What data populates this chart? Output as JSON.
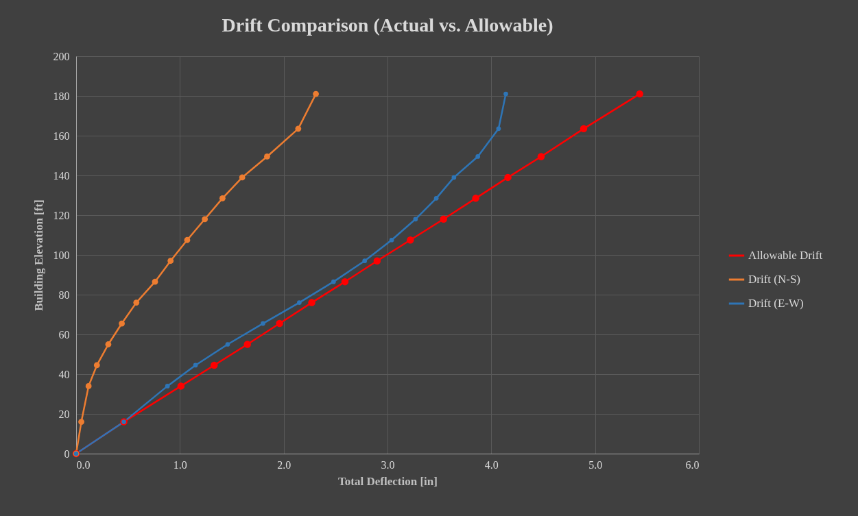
{
  "chart_data": {
    "type": "line",
    "title": "Drift Comparison (Actual vs. Allowable)",
    "xlabel": "Total Deflection [in]",
    "ylabel": "Building Elevation [ft]",
    "xlim": [
      0,
      6
    ],
    "ylim": [
      0,
      200
    ],
    "xticks": [
      {
        "value": 0,
        "label": "0.0"
      },
      {
        "value": 1,
        "label": "1.0"
      },
      {
        "value": 2,
        "label": "2.0"
      },
      {
        "value": 3,
        "label": "3.0"
      },
      {
        "value": 4,
        "label": "4.0"
      },
      {
        "value": 5,
        "label": "5.0"
      },
      {
        "value": 6,
        "label": "6.0"
      }
    ],
    "yticks": [
      0,
      20,
      40,
      60,
      80,
      100,
      120,
      140,
      160,
      180,
      200
    ],
    "grid": true,
    "legend": "right",
    "marker": "circle",
    "line_style": "solid",
    "series": [
      {
        "name": "Allowable Drift",
        "color": "#ff0000",
        "x": [
          0,
          0.46,
          1.01,
          1.33,
          1.65,
          1.96,
          2.27,
          2.59,
          2.9,
          3.22,
          3.54,
          3.85,
          4.16,
          4.48,
          4.89,
          5.43
        ],
        "values": [
          0,
          16,
          34,
          44.5,
          55,
          65.5,
          76,
          86.5,
          97,
          107.5,
          118,
          128.5,
          139,
          149.5,
          163.5,
          181
        ]
      },
      {
        "name": "Drift (N-S)",
        "color": "#ed7d31",
        "x": [
          0,
          0.05,
          0.12,
          0.2,
          0.31,
          0.44,
          0.58,
          0.76,
          0.91,
          1.07,
          1.24,
          1.41,
          1.6,
          1.84,
          2.14,
          2.31
        ],
        "values": [
          0,
          16,
          34,
          44.5,
          55,
          65.5,
          76,
          86.5,
          97,
          107.5,
          118,
          128.5,
          139,
          149.5,
          163.5,
          181
        ]
      },
      {
        "name": "Drift (E-W)",
        "color": "#2e75b6",
        "x": [
          0,
          0.46,
          0.88,
          1.15,
          1.46,
          1.8,
          2.15,
          2.48,
          2.78,
          3.04,
          3.27,
          3.47,
          3.64,
          3.87,
          4.07,
          4.14
        ],
        "values": [
          0,
          16,
          34,
          44.5,
          55,
          65.5,
          76,
          86.5,
          97,
          107.5,
          118,
          128.5,
          139,
          149.5,
          163.5,
          181
        ]
      }
    ]
  }
}
